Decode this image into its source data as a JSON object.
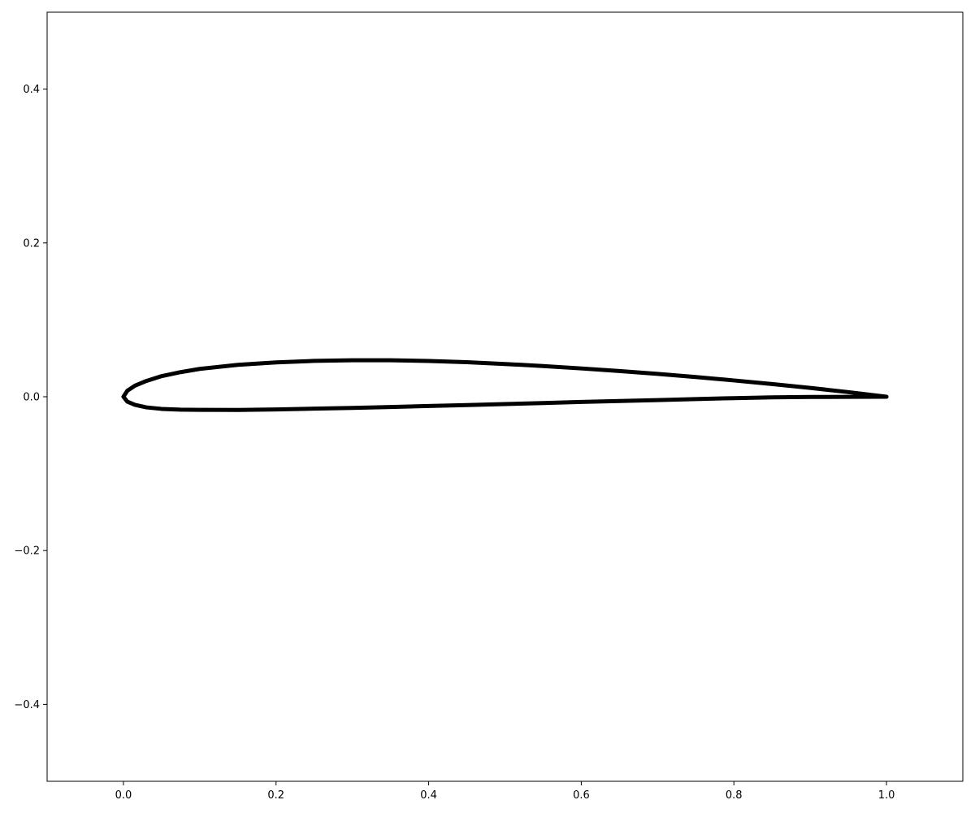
{
  "chart_data": {
    "type": "line",
    "title": "",
    "xlabel": "",
    "ylabel": "",
    "xlim": [
      -0.1,
      1.1
    ],
    "ylim": [
      -0.5,
      0.5
    ],
    "grid": false,
    "x_ticks": [
      0.0,
      0.2,
      0.4,
      0.6,
      0.8,
      1.0
    ],
    "x_tick_labels": [
      "0.0",
      "0.2",
      "0.4",
      "0.6",
      "0.8",
      "1.0"
    ],
    "y_ticks": [
      -0.4,
      -0.2,
      0.0,
      0.2,
      0.4
    ],
    "y_tick_labels": [
      "−0.4",
      "−0.2",
      "0.0",
      "0.2",
      "0.4"
    ],
    "series": [
      {
        "color": "#000000",
        "x": [
          1.0,
          0.95,
          0.9,
          0.85,
          0.8,
          0.75,
          0.7,
          0.65,
          0.6,
          0.55,
          0.5,
          0.45,
          0.4,
          0.35,
          0.3,
          0.25,
          0.2,
          0.15,
          0.1,
          0.075,
          0.05,
          0.03,
          0.015,
          0.005,
          0.0,
          0.005,
          0.015,
          0.03,
          0.05,
          0.075,
          0.1,
          0.15,
          0.2,
          0.25,
          0.3,
          0.35,
          0.4,
          0.45,
          0.5,
          0.55,
          0.6,
          0.65,
          0.7,
          0.75,
          0.8,
          0.85,
          0.9,
          0.95,
          1.0
        ],
        "y": [
          0.0,
          0.006,
          0.0115,
          0.0165,
          0.0212,
          0.0256,
          0.0297,
          0.0334,
          0.0368,
          0.0399,
          0.0426,
          0.0449,
          0.0465,
          0.0474,
          0.0474,
          0.0466,
          0.0447,
          0.0415,
          0.0362,
          0.032,
          0.0268,
          0.0205,
          0.0143,
          0.0077,
          0.0,
          -0.0063,
          -0.0105,
          -0.0138,
          -0.0158,
          -0.0168,
          -0.017,
          -0.0172,
          -0.0165,
          -0.0155,
          -0.0145,
          -0.0133,
          -0.012,
          -0.0108,
          -0.0095,
          -0.0082,
          -0.0068,
          -0.0055,
          -0.0043,
          -0.003,
          -0.0018,
          -0.0008,
          -0.0003,
          -0.0001,
          0.0
        ]
      }
    ]
  }
}
